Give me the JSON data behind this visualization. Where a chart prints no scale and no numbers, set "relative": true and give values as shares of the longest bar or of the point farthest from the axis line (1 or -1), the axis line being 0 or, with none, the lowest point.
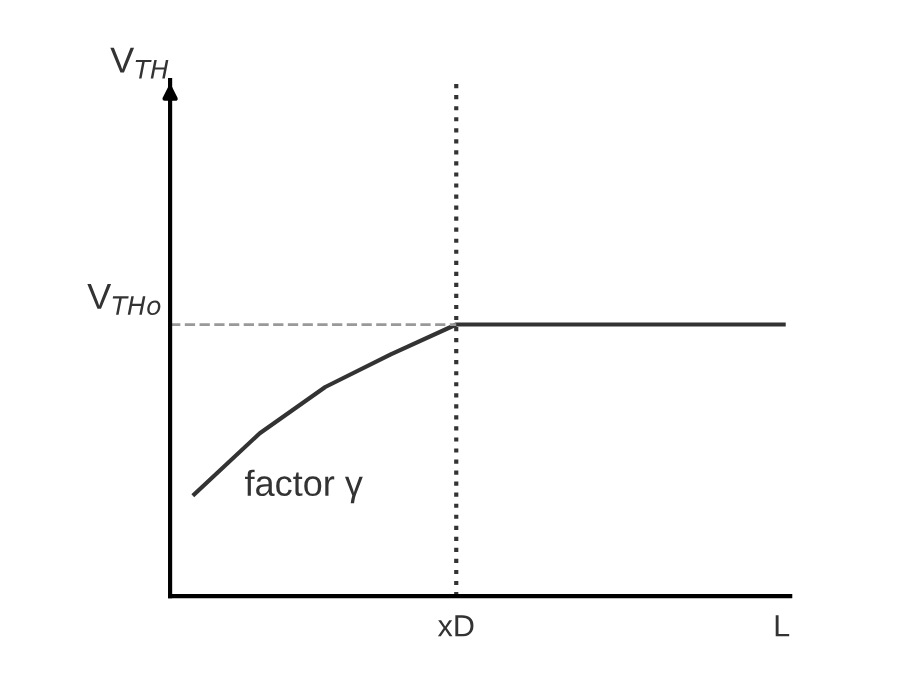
{
  "chart_data": {
    "type": "line",
    "relative": true,
    "xlabel": "L",
    "categories": [
      null,
      null,
      null,
      null,
      null,
      null,
      null,
      null,
      null,
      null
    ],
    "series": [
      {
        "color": "#333333",
        "values": [
          0.375,
          0.6,
          0.77,
          0.89,
          1,
          1,
          1,
          1,
          1,
          1
        ]
      }
    ],
    "ref_lines": [
      {
        "axis": "y",
        "value": 1,
        "label": "V$_{THo}$",
        "line_style": "dashed",
        "color": "#999999"
      }
    ],
    "annotations": [
      "V$_{TH}$",
      "factor γ",
      "xD"
    ],
    "grid": false,
    "legend": false,
    "marker": "none",
    "line_style": "solid"
  }
}
